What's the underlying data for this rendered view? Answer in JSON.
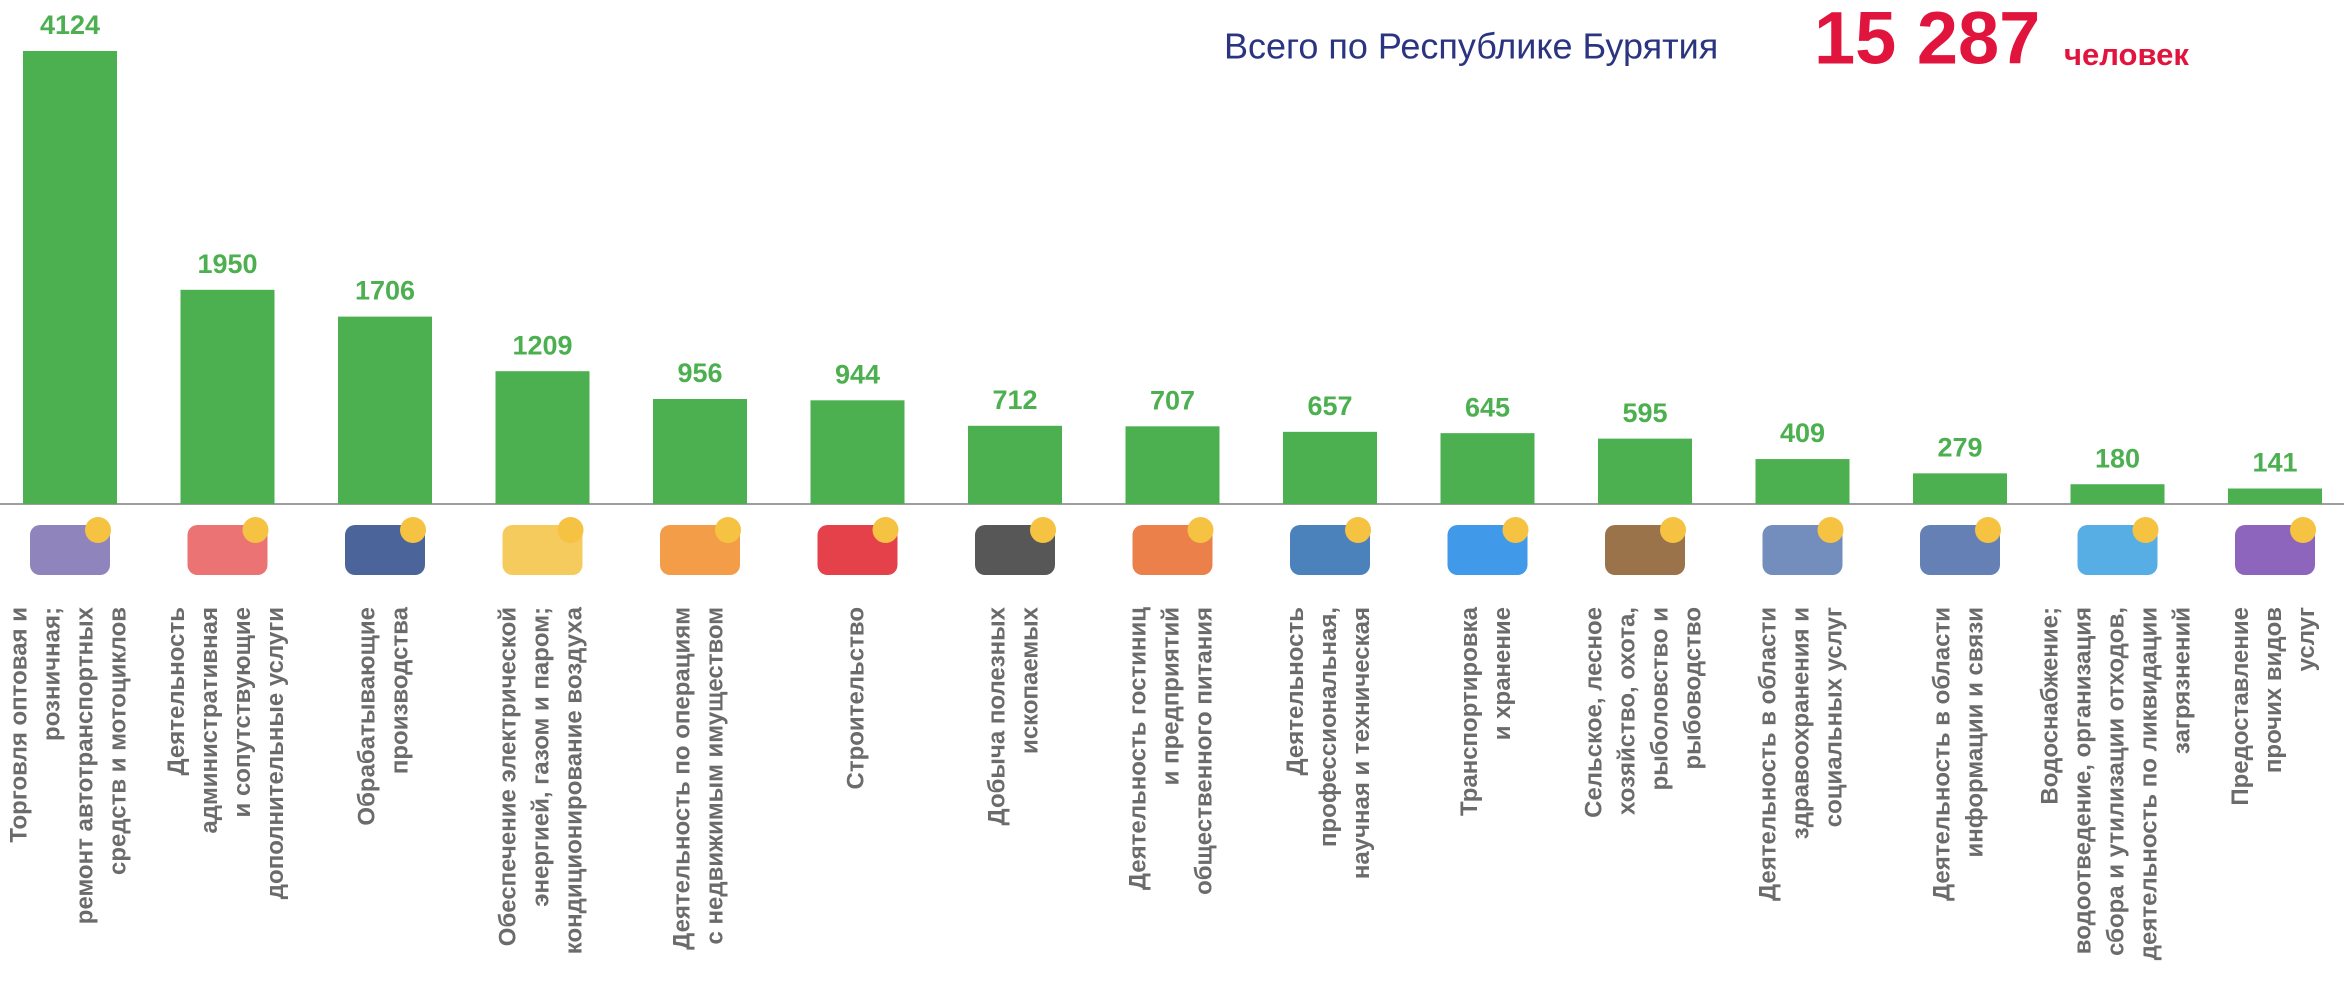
{
  "chart_data": {
    "type": "bar",
    "title": "Всего по Республике Бурятия",
    "total": "15 287",
    "total_unit": "человек",
    "color": "#4caf50",
    "categories": [
      "Торговля оптовая и\nрозничная;\nремонт автотранспортных\nсредств и мотоциклов",
      "Деятельность\nадминистративная\nи сопутствующие\nдополнительные услуги",
      "Обрабатывающие\nпроизводства",
      "Обеспечение электрической\nэнергией, газом и паром;\nкондиционирование воздуха",
      "Деятельность по операциям\nс недвижимым имуществом",
      "Строительство",
      "Добыча полезных\nископаемых",
      "Деятельность гостиниц\nи предприятий\nобщественного питания",
      "Деятельность\nпрофессиональная,\nнаучная и техническая",
      "Транспортировка\nи хранение",
      "Сельское, лесное\nхозяйство, охота,\nрыболовство и\nрыбоводство",
      "Деятельность в области\nздравоохранения и\nсоциальных услуг",
      "Деятельность в области\nинформации и связи",
      "Водоснабжение;\nводоотведение, организация\nсбора и утилизации отходов,\nдеятельность по ликвидации\nзагрязнений",
      "Предоставление\nпрочих видов\nуслуг"
    ],
    "values": [
      4124,
      1950,
      1706,
      1209,
      956,
      944,
      712,
      707,
      657,
      645,
      595,
      409,
      279,
      180,
      141
    ]
  }
}
